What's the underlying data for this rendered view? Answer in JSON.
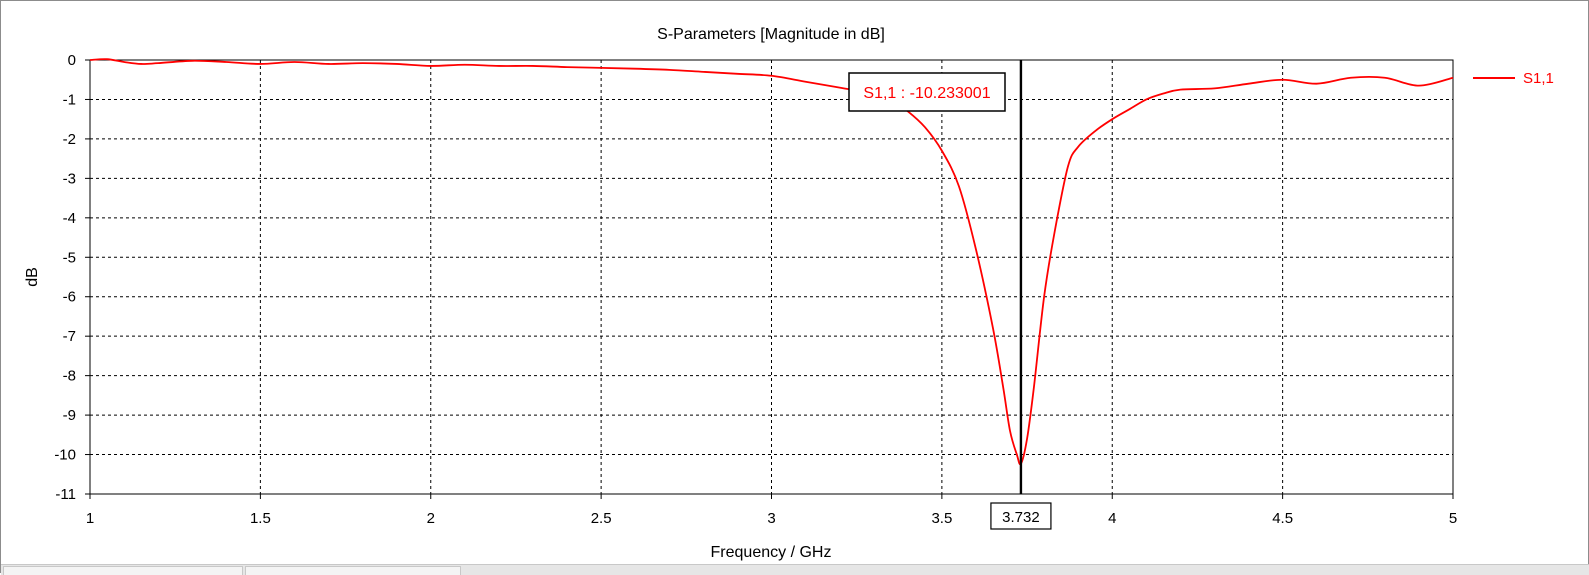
{
  "window": {
    "title": "S-Parameters [Magnitude in dB]"
  },
  "chart_data": {
    "type": "line",
    "title": "S-Parameters [Magnitude in dB]",
    "xlabel": "Frequency / GHz",
    "ylabel": "dB",
    "xlim": [
      1,
      5
    ],
    "ylim": [
      -11,
      0
    ],
    "xticks": [
      1,
      1.5,
      2,
      2.5,
      3,
      3.5,
      4,
      4.5,
      5
    ],
    "xtick_labels": [
      "1",
      "1.5",
      "2",
      "2.5",
      "3",
      "3.5",
      "4",
      "4.5",
      "5"
    ],
    "yticks": [
      0,
      -1,
      -2,
      -3,
      -4,
      -5,
      -6,
      -7,
      -8,
      -9,
      -10,
      -11
    ],
    "ytick_labels": [
      "0",
      "-1",
      "-2",
      "-3",
      "-4",
      "-5",
      "-6",
      "-7",
      "-8",
      "-9",
      "-10",
      "-11"
    ],
    "grid": true,
    "legend_position": "right",
    "colors": {
      "series": "#ff0000",
      "marker": "#000000",
      "grid": "#000000"
    },
    "series": [
      {
        "name": "S1,1",
        "x": [
          1.0,
          1.05,
          1.1,
          1.15,
          1.2,
          1.3,
          1.4,
          1.5,
          1.6,
          1.7,
          1.8,
          1.9,
          2.0,
          2.1,
          2.2,
          2.3,
          2.4,
          2.5,
          2.6,
          2.7,
          2.8,
          2.9,
          3.0,
          3.1,
          3.2,
          3.3,
          3.35,
          3.4,
          3.45,
          3.5,
          3.55,
          3.6,
          3.65,
          3.68,
          3.7,
          3.72,
          3.732,
          3.75,
          3.77,
          3.8,
          3.83,
          3.87,
          3.9,
          3.95,
          4.0,
          4.05,
          4.1,
          4.15,
          4.2,
          4.3,
          4.4,
          4.5,
          4.6,
          4.7,
          4.8,
          4.9,
          5.0
        ],
        "y": [
          0.0,
          0.02,
          -0.05,
          -0.1,
          -0.08,
          -0.02,
          -0.05,
          -0.1,
          -0.05,
          -0.1,
          -0.08,
          -0.1,
          -0.15,
          -0.12,
          -0.15,
          -0.15,
          -0.18,
          -0.2,
          -0.22,
          -0.25,
          -0.3,
          -0.35,
          -0.4,
          -0.55,
          -0.7,
          -0.85,
          -1.0,
          -1.3,
          -1.7,
          -2.3,
          -3.2,
          -4.8,
          -6.8,
          -8.3,
          -9.4,
          -10.0,
          -10.233,
          -9.6,
          -8.3,
          -6.0,
          -4.4,
          -2.7,
          -2.2,
          -1.8,
          -1.5,
          -1.25,
          -1.0,
          -0.85,
          -0.75,
          -0.72,
          -0.6,
          -0.5,
          -0.6,
          -0.45,
          -0.45,
          -0.65,
          -0.45
        ]
      }
    ],
    "marker": {
      "x": 3.732,
      "x_label": "3.732",
      "label": "S1,1 : -10.233001"
    }
  }
}
